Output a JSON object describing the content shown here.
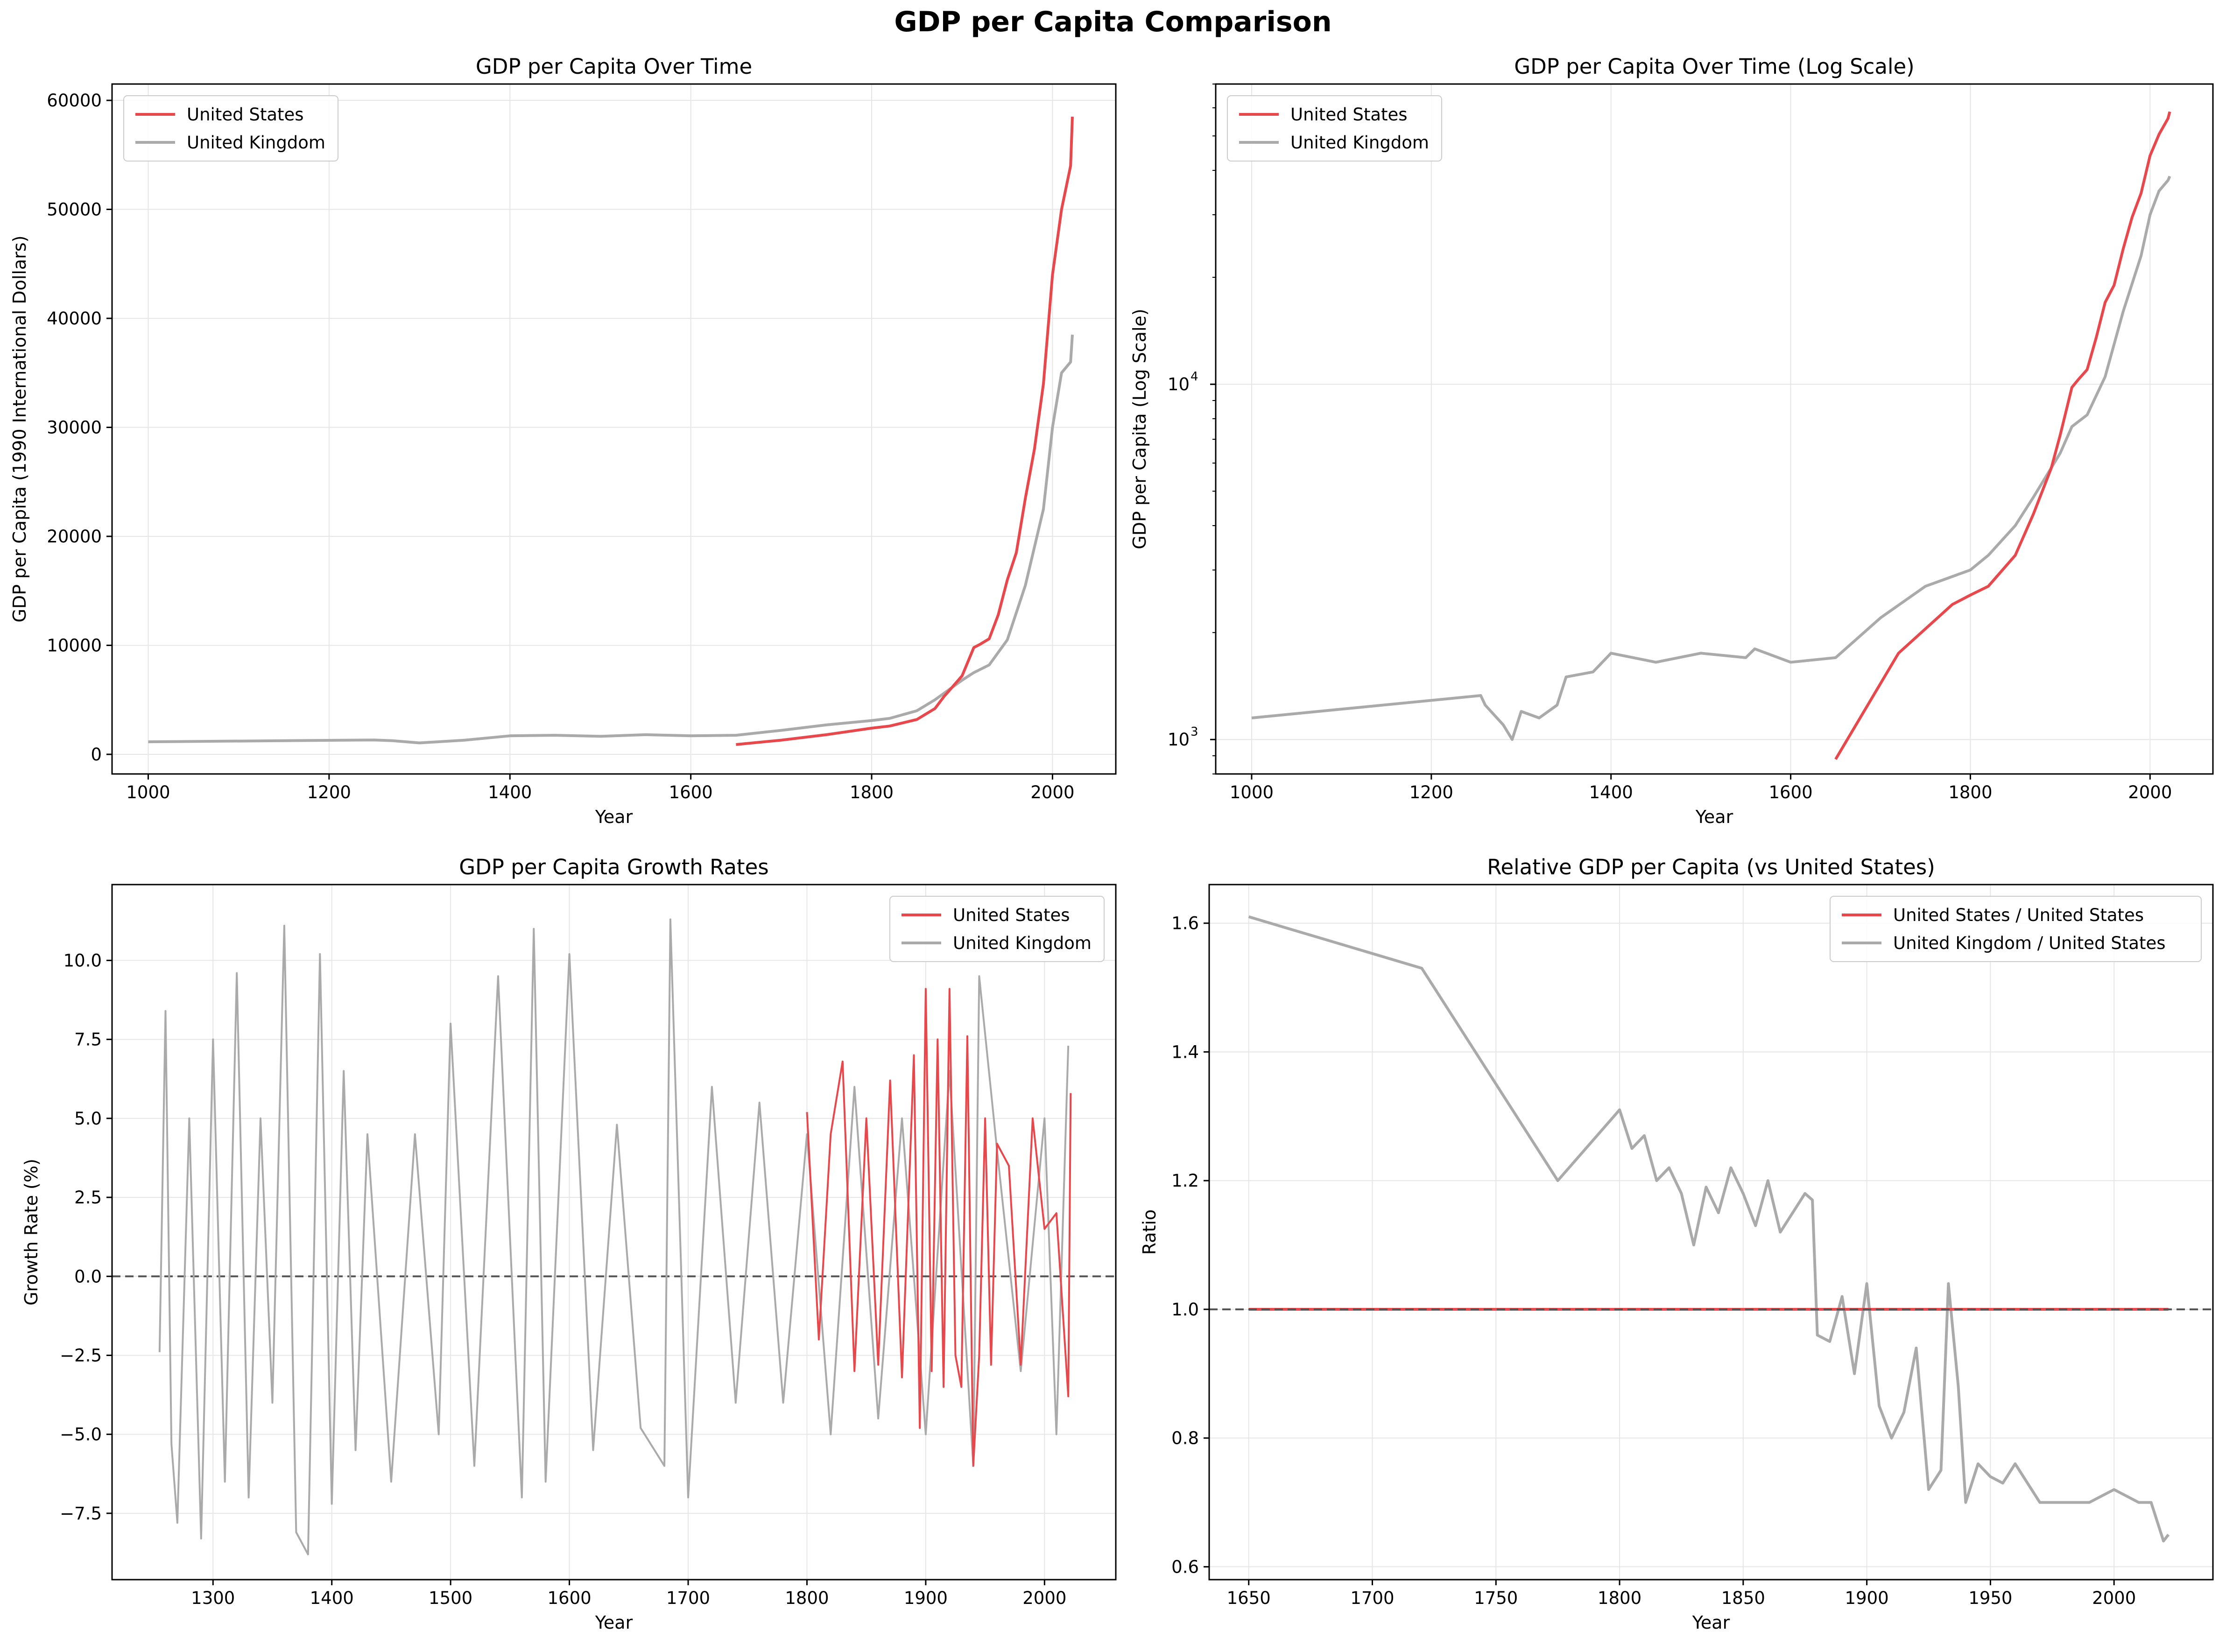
{
  "figure": {
    "suptitle": "GDP per Capita Comparison"
  },
  "colors": {
    "us": "#e8474c",
    "uk": "#aaaaaa",
    "zero_line": "#555555",
    "grid": "#e6e6e6"
  },
  "chart_data": [
    {
      "type": "line",
      "title": "GDP per Capita Over Time",
      "xlabel": "Year",
      "ylabel": "GDP per Capita (1990 International Dollars)",
      "xlim": [
        960,
        2070
      ],
      "ylim": [
        -1800,
        61500
      ],
      "xticks": [
        1000,
        1200,
        1400,
        1600,
        1800,
        2000
      ],
      "yticks": [
        0,
        10000,
        20000,
        30000,
        40000,
        50000,
        60000
      ],
      "ytick_labels": [
        "0",
        "10000",
        "20000",
        "30000",
        "40000",
        "50000",
        "60000"
      ],
      "grid": true,
      "legend": "top-left",
      "series": [
        {
          "name": "United States",
          "color": "#e8474c",
          "x": [
            1650,
            1700,
            1750,
            1800,
            1820,
            1850,
            1870,
            1880,
            1900,
            1913,
            1920,
            1930,
            1940,
            1950,
            1960,
            1970,
            1980,
            1990,
            2000,
            2010,
            2020,
            2022
          ],
          "y": [
            900,
            1300,
            1800,
            2400,
            2600,
            3200,
            4200,
            5300,
            7200,
            9800,
            10100,
            10600,
            12800,
            16000,
            18500,
            23500,
            28000,
            34000,
            44000,
            50000,
            54000,
            58500
          ]
        },
        {
          "name": "United Kingdom",
          "color": "#aaaaaa",
          "x": [
            1000,
            1250,
            1270,
            1300,
            1350,
            1400,
            1450,
            1500,
            1550,
            1600,
            1650,
            1700,
            1750,
            1800,
            1820,
            1850,
            1870,
            1900,
            1913,
            1930,
            1950,
            1970,
            1990,
            2000,
            2010,
            2020,
            2022
          ],
          "y": [
            1150,
            1320,
            1250,
            1050,
            1300,
            1700,
            1750,
            1650,
            1800,
            1700,
            1750,
            2200,
            2700,
            3100,
            3300,
            4000,
            5000,
            6800,
            7500,
            8200,
            10500,
            15500,
            22500,
            30000,
            35000,
            36000,
            38500
          ]
        }
      ]
    },
    {
      "type": "line",
      "title": "GDP per Capita Over Time (Log Scale)",
      "xlabel": "Year",
      "ylabel": "GDP per Capita (Log Scale)",
      "xlim": [
        960,
        2070
      ],
      "ylim": [
        800,
        70000
      ],
      "yscale": "log",
      "xticks": [
        1000,
        1200,
        1400,
        1600,
        1800,
        2000
      ],
      "yticks_major": [
        1000,
        10000
      ],
      "ytick_labels": [
        "10",
        "10"
      ],
      "ytick_exponents": [
        "3",
        "4"
      ],
      "grid": true,
      "legend": "top-left",
      "series": [
        {
          "name": "United States",
          "color": "#e8474c",
          "x": [
            1650,
            1720,
            1780,
            1800,
            1820,
            1850,
            1870,
            1890,
            1900,
            1913,
            1920,
            1930,
            1940,
            1950,
            1960,
            1970,
            1980,
            1990,
            2000,
            2010,
            2020,
            2022
          ],
          "y": [
            880,
            1750,
            2400,
            2550,
            2700,
            3300,
            4300,
            5800,
            7200,
            9800,
            10300,
            11000,
            13500,
            17000,
            19000,
            24000,
            29500,
            34500,
            44000,
            50500,
            56000,
            58500
          ]
        },
        {
          "name": "United Kingdom",
          "color": "#aaaaaa",
          "x": [
            1000,
            1255,
            1260,
            1280,
            1290,
            1300,
            1320,
            1340,
            1350,
            1380,
            1400,
            1450,
            1500,
            1550,
            1560,
            1600,
            1650,
            1700,
            1750,
            1800,
            1820,
            1850,
            1870,
            1900,
            1913,
            1930,
            1950,
            1970,
            1990,
            2000,
            2010,
            2020,
            2022
          ],
          "y": [
            1150,
            1330,
            1250,
            1100,
            1000,
            1200,
            1150,
            1250,
            1500,
            1550,
            1750,
            1650,
            1750,
            1700,
            1800,
            1650,
            1700,
            2200,
            2700,
            3000,
            3300,
            4000,
            4800,
            6400,
            7600,
            8200,
            10500,
            16000,
            23000,
            30000,
            35000,
            37500,
            38500
          ]
        }
      ]
    },
    {
      "type": "line",
      "title": "GDP per Capita Growth Rates",
      "xlabel": "Year",
      "ylabel": "Growth Rate (%)",
      "xlim": [
        1215,
        2060
      ],
      "ylim": [
        -9.6,
        12.4
      ],
      "xticks": [
        1300,
        1400,
        1500,
        1600,
        1700,
        1800,
        1900,
        2000
      ],
      "yticks": [
        -7.5,
        -5.0,
        -2.5,
        0.0,
        2.5,
        5.0,
        7.5,
        10.0
      ],
      "ytick_labels": [
        "−7.5",
        "−5.0",
        "−2.5",
        "0.0",
        "2.5",
        "5.0",
        "7.5",
        "10.0"
      ],
      "grid": true,
      "legend": "top-right",
      "series": [
        {
          "name": "United States",
          "color": "#e8474c",
          "x": [
            1800,
            1810,
            1820,
            1830,
            1840,
            1850,
            1860,
            1870,
            1880,
            1890,
            1895,
            1900,
            1905,
            1910,
            1915,
            1920,
            1925,
            1930,
            1935,
            1940,
            1945,
            1950,
            1955,
            1960,
            1970,
            1980,
            1990,
            2000,
            2010,
            2020,
            2022
          ],
          "y": [
            5.2,
            -2.0,
            4.5,
            6.8,
            -3.0,
            5.0,
            -2.8,
            6.2,
            -3.2,
            7.0,
            -4.8,
            9.1,
            -3.0,
            7.5,
            -3.5,
            9.1,
            -2.5,
            -3.5,
            7.6,
            -6.0,
            -2.5,
            5.0,
            -2.8,
            4.2,
            3.5,
            -2.8,
            5.0,
            1.5,
            2.0,
            -3.8,
            5.8
          ]
        },
        {
          "name": "United Kingdom",
          "color": "#aaaaaa",
          "x": [
            1255,
            1260,
            1265,
            1270,
            1280,
            1290,
            1300,
            1310,
            1320,
            1330,
            1340,
            1350,
            1360,
            1370,
            1380,
            1390,
            1400,
            1410,
            1420,
            1430,
            1450,
            1470,
            1490,
            1500,
            1520,
            1540,
            1560,
            1570,
            1580,
            1600,
            1620,
            1640,
            1660,
            1680,
            1685,
            1700,
            1720,
            1740,
            1760,
            1780,
            1800,
            1820,
            1840,
            1860,
            1880,
            1900,
            1920,
            1940,
            1945,
            1960,
            1980,
            2000,
            2010,
            2020
          ],
          "y": [
            -2.4,
            8.4,
            -5.3,
            -7.8,
            5.0,
            -8.3,
            7.5,
            -6.5,
            9.6,
            -7.0,
            5.0,
            -4.0,
            11.1,
            -8.1,
            -8.8,
            10.2,
            -7.2,
            6.5,
            -5.5,
            4.5,
            -6.5,
            4.5,
            -5.0,
            8.0,
            -6.0,
            9.5,
            -7.0,
            11.0,
            -6.5,
            10.2,
            -5.5,
            4.8,
            -4.8,
            -6.0,
            11.3,
            -7.0,
            6.0,
            -4.0,
            5.5,
            -4.0,
            4.5,
            -5.0,
            6.0,
            -4.5,
            5.0,
            -5.0,
            6.5,
            -6.0,
            9.5,
            4.0,
            -3.0,
            5.0,
            -5.0,
            7.3
          ]
        }
      ]
    },
    {
      "type": "line",
      "title": "Relative GDP per Capita (vs United States)",
      "xlabel": "Year",
      "ylabel": "Ratio",
      "xlim": [
        1634,
        2040
      ],
      "ylim": [
        0.58,
        1.66
      ],
      "xticks": [
        1650,
        1700,
        1750,
        1800,
        1850,
        1900,
        1950,
        2000
      ],
      "yticks": [
        0.6,
        0.8,
        1.0,
        1.2,
        1.4,
        1.6
      ],
      "ytick_labels": [
        "0.6",
        "0.8",
        "1.0",
        "1.2",
        "1.4",
        "1.6"
      ],
      "grid": true,
      "legend": "top-right",
      "series": [
        {
          "name": "United States / United States",
          "color": "#e8474c",
          "x": [
            1650,
            2022
          ],
          "y": [
            1.0,
            1.0
          ]
        },
        {
          "name": "United Kingdom / United States",
          "color": "#aaaaaa",
          "x": [
            1650,
            1720,
            1775,
            1800,
            1805,
            1810,
            1815,
            1820,
            1825,
            1830,
            1835,
            1840,
            1845,
            1850,
            1855,
            1860,
            1865,
            1870,
            1875,
            1878,
            1880,
            1885,
            1890,
            1895,
            1900,
            1905,
            1910,
            1915,
            1920,
            1925,
            1930,
            1933,
            1937,
            1940,
            1945,
            1950,
            1955,
            1960,
            1970,
            1980,
            1990,
            2000,
            2010,
            2015,
            2020,
            2022
          ],
          "y": [
            1.61,
            1.53,
            1.2,
            1.31,
            1.25,
            1.27,
            1.2,
            1.22,
            1.18,
            1.1,
            1.19,
            1.15,
            1.22,
            1.18,
            1.13,
            1.2,
            1.12,
            1.15,
            1.18,
            1.17,
            0.96,
            0.95,
            1.02,
            0.9,
            1.04,
            0.85,
            0.8,
            0.84,
            0.94,
            0.72,
            0.75,
            1.04,
            0.88,
            0.7,
            0.76,
            0.74,
            0.73,
            0.76,
            0.7,
            0.7,
            0.7,
            0.72,
            0.7,
            0.7,
            0.64,
            0.65
          ]
        }
      ]
    }
  ],
  "reference_lines": {
    "growth_zero": 0.0,
    "ratio_one": 1.0
  }
}
